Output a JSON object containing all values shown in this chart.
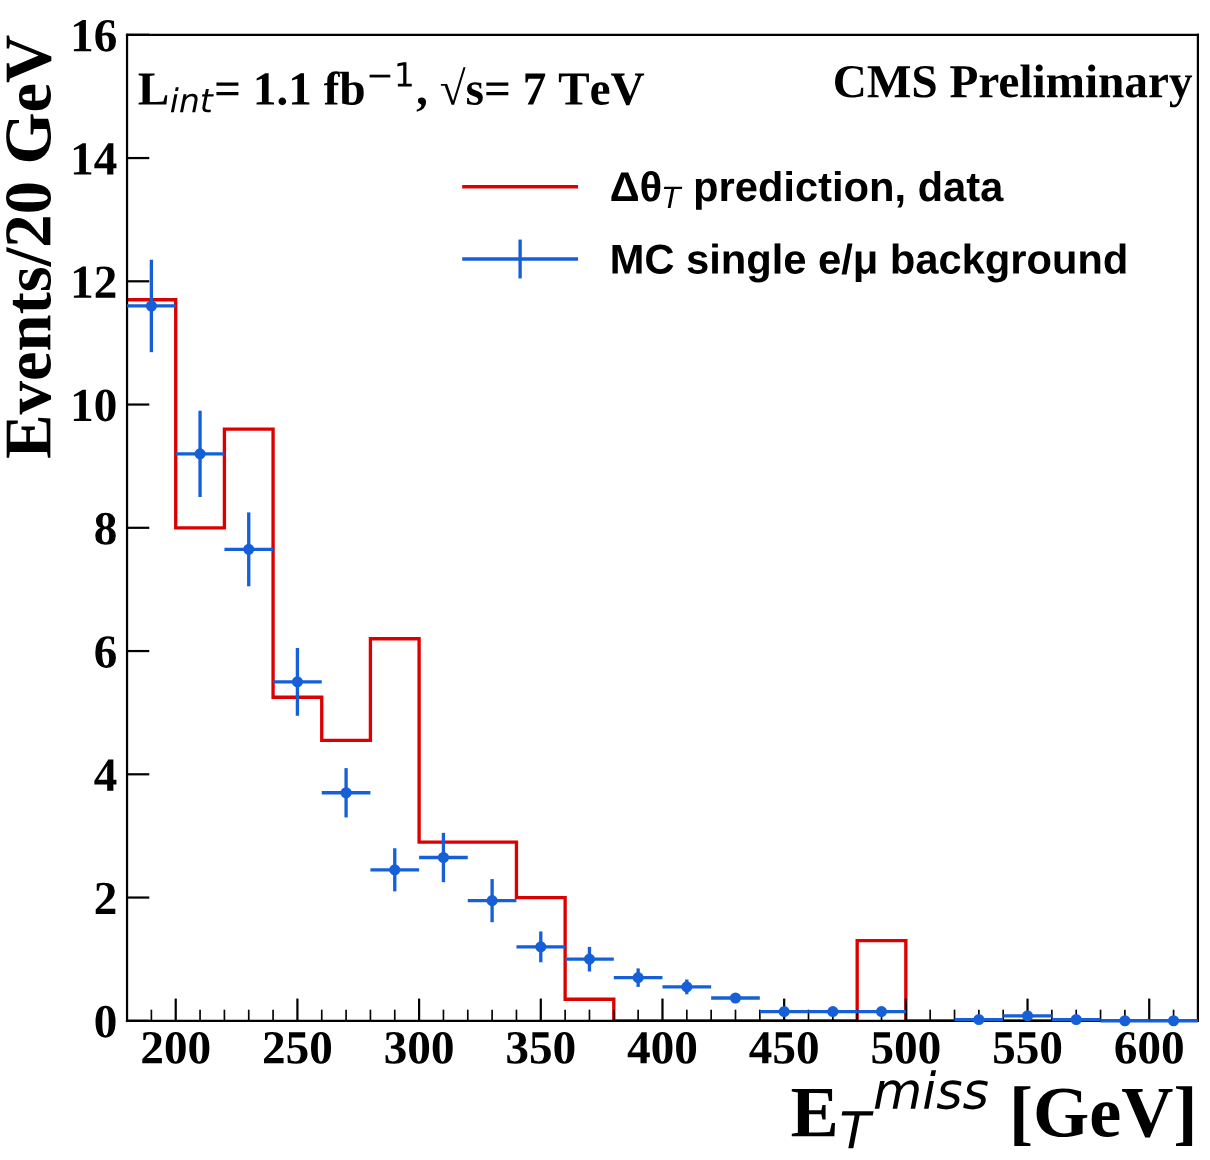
{
  "chart_data": {
    "type": "histogram",
    "xlabel": "E$_{T}$$^{miss}$ [GeV]",
    "ylabel": "Events/20 GeV",
    "annotations": [
      "L$_{int}$= 1.1 fb$^{−1}$, √s= 7 TeV",
      "CMS Preliminary"
    ],
    "bins": [
      180,
      200,
      220,
      240,
      260,
      280,
      300,
      320,
      340,
      360,
      380,
      400,
      420,
      440,
      460,
      480,
      500,
      520,
      540,
      560,
      580,
      600,
      620
    ],
    "xlim": [
      180,
      620
    ],
    "xticks": [
      200,
      250,
      300,
      350,
      400,
      450,
      500,
      550,
      600
    ],
    "ylim": [
      0,
      16
    ],
    "yticks": [
      0,
      2,
      4,
      6,
      8,
      10,
      12,
      14,
      16
    ],
    "legend": "top right",
    "grid": false,
    "series": [
      {
        "name": "Δθ$_{T}$ prediction, data",
        "color": "#dd0000",
        "values": [
          11.7,
          8.0,
          9.6,
          5.25,
          4.55,
          6.2,
          2.9,
          2.9,
          2.0,
          0.35,
          0,
          0,
          0,
          0,
          0,
          1.3,
          0,
          0,
          0,
          0,
          0,
          0
        ]
      },
      {
        "name": "MC single e/μ background",
        "color": "#1560d8",
        "type": "scatter",
        "marker": "circle",
        "x": [
          190,
          210,
          230,
          250,
          270,
          290,
          310,
          330,
          350,
          370,
          390,
          410,
          430,
          450,
          470,
          490,
          510,
          530,
          550,
          570,
          590,
          610
        ],
        "values": [
          11.6,
          9.2,
          7.65,
          5.5,
          3.7,
          2.45,
          2.65,
          1.95,
          1.2,
          1.0,
          0.7,
          0.55,
          0.37,
          0.15,
          0.15,
          0.15,
          null,
          0.02,
          0.08,
          0.02,
          0,
          0
        ],
        "errors": [
          0.75,
          0.7,
          0.6,
          0.55,
          0.4,
          0.35,
          0.4,
          0.35,
          0.25,
          0.2,
          0.15,
          0.12,
          0.05,
          null,
          null,
          null,
          null,
          null,
          null,
          null,
          null,
          null
        ],
        "xerrors": [
          10,
          10,
          10,
          10,
          10,
          10,
          10,
          10,
          10,
          10,
          10,
          10,
          10,
          10,
          10,
          10,
          null,
          10,
          10,
          10,
          10,
          10
        ]
      }
    ]
  }
}
